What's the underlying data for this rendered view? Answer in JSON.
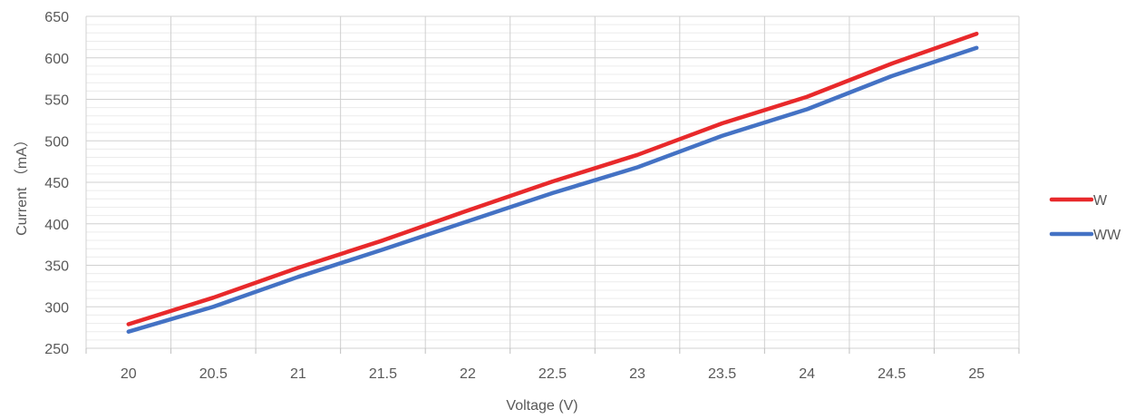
{
  "chart_data": {
    "type": "line",
    "title": "",
    "xlabel": "Voltage (V)",
    "ylabel": "Current （mA）",
    "x": [
      20,
      20.5,
      21,
      21.5,
      22,
      22.5,
      23,
      23.5,
      24,
      24.5,
      25
    ],
    "x_tick_labels": [
      "20",
      "20.5",
      "21",
      "21.5",
      "22",
      "22.5",
      "23",
      "23.5",
      "24",
      "24.5",
      "25"
    ],
    "y_tick_labels": [
      "250",
      "300",
      "350",
      "400",
      "450",
      "500",
      "550",
      "600",
      "650"
    ],
    "ylim": [
      250,
      650
    ],
    "grid": true,
    "legend_position": "right",
    "series": [
      {
        "name": "W",
        "color": "#e8292b",
        "values": [
          279,
          311,
          347,
          380,
          416,
          451,
          483,
          521,
          553,
          593,
          629
        ]
      },
      {
        "name": "WW",
        "color": "#4472c4",
        "values": [
          270,
          300,
          336,
          369,
          403,
          437,
          468,
          506,
          538,
          578,
          612
        ]
      }
    ]
  }
}
